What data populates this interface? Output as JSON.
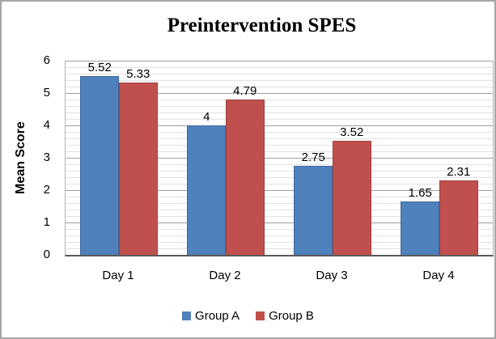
{
  "chart_data": {
    "type": "bar",
    "title": "Preintervention SPES",
    "xlabel": "",
    "ylabel": "Mean Score",
    "categories": [
      "Day 1",
      "Day 2",
      "Day 3",
      "Day 4"
    ],
    "series": [
      {
        "name": "Group A",
        "color": "#4f81bd",
        "values": [
          5.52,
          4,
          2.75,
          1.65
        ]
      },
      {
        "name": "Group B",
        "color": "#c0504d",
        "values": [
          5.33,
          4.79,
          3.52,
          2.31
        ]
      }
    ],
    "ylim": [
      0,
      6
    ],
    "yticks": [
      6,
      5,
      4,
      3,
      2,
      1,
      0
    ],
    "y_major_unit": 1,
    "y_minor_unit": 0.2,
    "grid": "horizontal major and minor gridlines on",
    "data_labels": "outside end",
    "legend_position": "bottom"
  },
  "colors": {
    "series_a": "#4f81bd",
    "series_b": "#c0504d",
    "major_gridline": "#9f9f9f",
    "minor_gridline": "#e1e1e1",
    "axis_line": "#595959",
    "chart_border": "#a6a6a6",
    "background": "#ffffff"
  }
}
